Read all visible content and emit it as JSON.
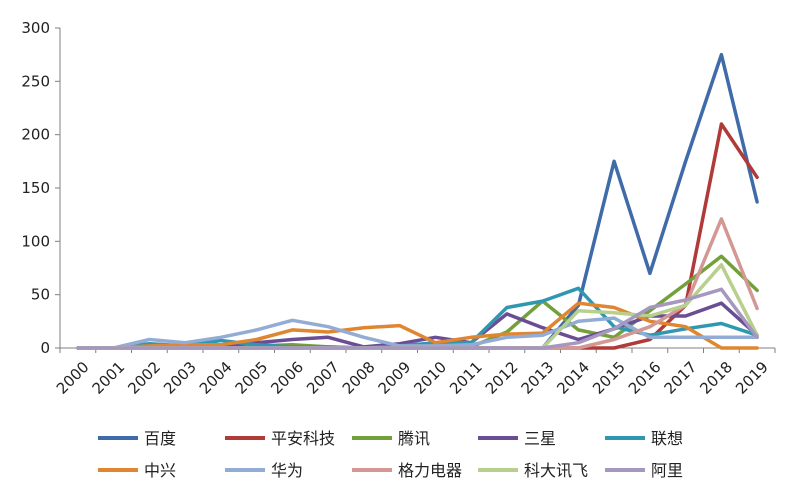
{
  "chart_data": {
    "type": "line",
    "title": "",
    "xlabel": "",
    "ylabel": "",
    "x": [
      "2000",
      "2001",
      "2002",
      "2003",
      "2004",
      "2005",
      "2006",
      "2007",
      "2008",
      "2009",
      "2010",
      "2011",
      "2012",
      "2013",
      "2014",
      "2015",
      "2016",
      "2017",
      "2018",
      "2019"
    ],
    "ylim": [
      0,
      300
    ],
    "yticks": [
      0,
      50,
      100,
      150,
      200,
      250,
      300
    ],
    "grid": false,
    "legend_position": "bottom",
    "series": [
      {
        "name": "百度",
        "color": "#3f6ba8",
        "values": [
          0,
          0,
          0,
          0,
          0,
          0,
          0,
          0,
          0,
          0,
          0,
          0,
          0,
          0,
          40,
          175,
          70,
          175,
          275,
          137
        ]
      },
      {
        "name": "平安科技",
        "color": "#b03a38",
        "values": [
          0,
          0,
          0,
          0,
          0,
          0,
          0,
          0,
          0,
          0,
          0,
          0,
          0,
          0,
          0,
          0,
          8,
          40,
          210,
          160
        ]
      },
      {
        "name": "腾讯",
        "color": "#74a03c",
        "values": [
          0,
          0,
          2,
          2,
          2,
          2,
          3,
          1,
          0,
          1,
          3,
          1,
          15,
          44,
          17,
          10,
          35,
          60,
          86,
          54
        ]
      },
      {
        "name": "三星",
        "color": "#6a4d95",
        "values": [
          0,
          0,
          2,
          2,
          2,
          5,
          8,
          10,
          1,
          4,
          10,
          5,
          32,
          19,
          8,
          18,
          30,
          30,
          42,
          12
        ]
      },
      {
        "name": "联想",
        "color": "#2f98b0",
        "values": [
          0,
          0,
          4,
          2,
          7,
          3,
          1,
          1,
          0,
          2,
          5,
          5,
          38,
          44,
          56,
          20,
          12,
          18,
          23,
          12
        ]
      },
      {
        "name": "中兴",
        "color": "#e08530",
        "values": [
          0,
          0,
          2,
          3,
          3,
          8,
          17,
          15,
          19,
          21,
          5,
          10,
          13,
          14,
          42,
          38,
          25,
          20,
          0,
          0
        ]
      },
      {
        "name": "华为",
        "color": "#93acd6",
        "values": [
          0,
          0,
          8,
          5,
          10,
          17,
          26,
          20,
          10,
          2,
          2,
          3,
          10,
          12,
          25,
          28,
          10,
          10,
          10,
          10
        ]
      },
      {
        "name": "格力电器",
        "color": "#d49894",
        "values": [
          0,
          0,
          0,
          0,
          0,
          0,
          0,
          0,
          0,
          0,
          0,
          0,
          0,
          0,
          0,
          8,
          20,
          40,
          121,
          37
        ]
      },
      {
        "name": "科大讯飞",
        "color": "#b8cf8e",
        "values": [
          0,
          0,
          0,
          0,
          0,
          0,
          0,
          0,
          0,
          0,
          0,
          0,
          0,
          0,
          35,
          33,
          30,
          40,
          78,
          12
        ]
      },
      {
        "name": "阿里",
        "color": "#a697bf",
        "values": [
          0,
          0,
          0,
          0,
          0,
          0,
          0,
          0,
          0,
          0,
          0,
          0,
          0,
          0,
          5,
          18,
          38,
          45,
          55,
          10
        ]
      }
    ]
  }
}
